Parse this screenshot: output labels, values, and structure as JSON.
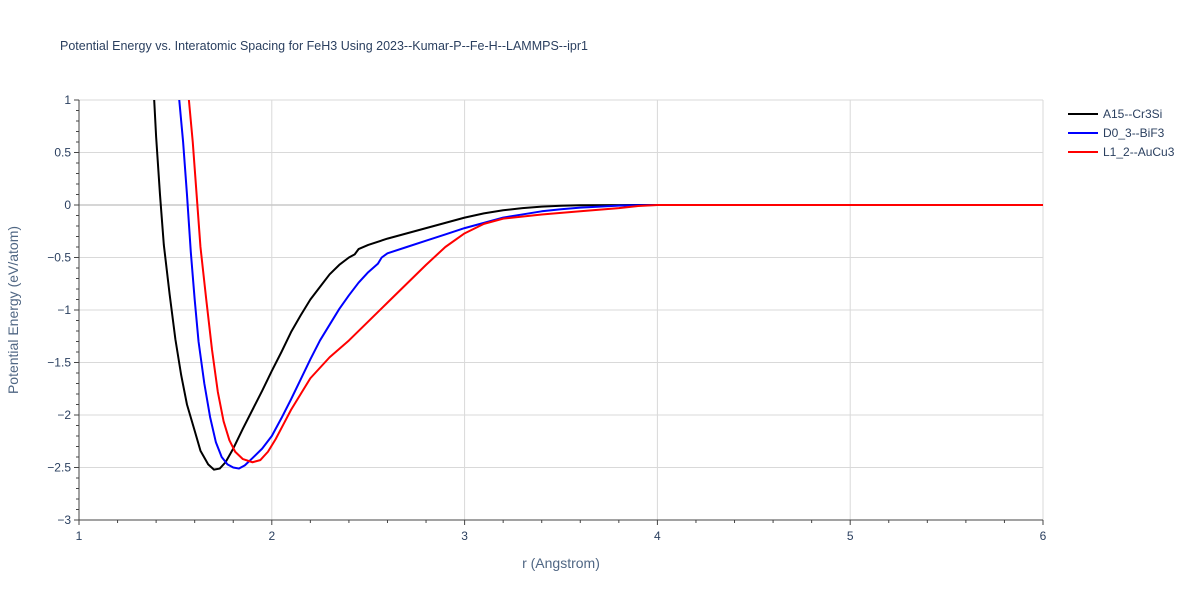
{
  "chart_data": {
    "type": "line",
    "title": "Potential Energy vs. Interatomic Spacing for FeH3 Using 2023--Kumar-P--Fe-H--LAMMPS--ipr1",
    "xlabel": "r (Angstrom)",
    "ylabel": "Potential Energy (eV/atom)",
    "xlim": [
      1,
      6
    ],
    "ylim": [
      -3,
      1
    ],
    "x_ticks": [
      1,
      2,
      3,
      4,
      5,
      6
    ],
    "x_tick_labels": [
      "1",
      "2",
      "3",
      "4",
      "5",
      "6"
    ],
    "y_ticks": [
      1,
      0.5,
      0,
      -0.5,
      -1,
      -1.5,
      -2,
      -2.5,
      -3
    ],
    "y_tick_labels": [
      "1",
      "0.5",
      "0",
      "−0.5",
      "−1",
      "−1.5",
      "−2",
      "−2.5",
      "−3"
    ],
    "grid": true,
    "legend_position": "top-right",
    "series": [
      {
        "name": "A15--Cr3Si",
        "color": "#000000",
        "points": [
          [
            1.39,
            1.0
          ],
          [
            1.4,
            0.65
          ],
          [
            1.42,
            0.1
          ],
          [
            1.44,
            -0.38
          ],
          [
            1.47,
            -0.85
          ],
          [
            1.5,
            -1.28
          ],
          [
            1.53,
            -1.62
          ],
          [
            1.56,
            -1.9
          ],
          [
            1.6,
            -2.15
          ],
          [
            1.63,
            -2.34
          ],
          [
            1.67,
            -2.47
          ],
          [
            1.7,
            -2.52
          ],
          [
            1.73,
            -2.51
          ],
          [
            1.76,
            -2.45
          ],
          [
            1.8,
            -2.32
          ],
          [
            1.85,
            -2.13
          ],
          [
            1.9,
            -1.95
          ],
          [
            1.95,
            -1.77
          ],
          [
            2.0,
            -1.58
          ],
          [
            2.05,
            -1.4
          ],
          [
            2.1,
            -1.21
          ],
          [
            2.15,
            -1.05
          ],
          [
            2.2,
            -0.9
          ],
          [
            2.25,
            -0.78
          ],
          [
            2.3,
            -0.66
          ],
          [
            2.35,
            -0.57
          ],
          [
            2.4,
            -0.5
          ],
          [
            2.43,
            -0.47
          ],
          [
            2.45,
            -0.42
          ],
          [
            2.5,
            -0.38
          ],
          [
            2.6,
            -0.32
          ],
          [
            2.7,
            -0.27
          ],
          [
            2.8,
            -0.22
          ],
          [
            2.9,
            -0.17
          ],
          [
            3.0,
            -0.12
          ],
          [
            3.1,
            -0.08
          ],
          [
            3.2,
            -0.05
          ],
          [
            3.3,
            -0.03
          ],
          [
            3.4,
            -0.015
          ],
          [
            3.5,
            -0.007
          ],
          [
            3.6,
            -0.003
          ],
          [
            3.8,
            -0.001
          ],
          [
            4.0,
            0.0
          ],
          [
            5.0,
            0.0
          ],
          [
            6.0,
            0.0
          ]
        ]
      },
      {
        "name": "D0_3--BiF3",
        "color": "#0000ff",
        "points": [
          [
            1.52,
            1.0
          ],
          [
            1.54,
            0.6
          ],
          [
            1.56,
            0.1
          ],
          [
            1.58,
            -0.45
          ],
          [
            1.6,
            -0.9
          ],
          [
            1.62,
            -1.3
          ],
          [
            1.65,
            -1.7
          ],
          [
            1.68,
            -2.02
          ],
          [
            1.71,
            -2.26
          ],
          [
            1.74,
            -2.4
          ],
          [
            1.77,
            -2.47
          ],
          [
            1.8,
            -2.5
          ],
          [
            1.83,
            -2.51
          ],
          [
            1.86,
            -2.48
          ],
          [
            1.9,
            -2.41
          ],
          [
            1.95,
            -2.32
          ],
          [
            2.0,
            -2.2
          ],
          [
            2.05,
            -2.03
          ],
          [
            2.1,
            -1.85
          ],
          [
            2.15,
            -1.66
          ],
          [
            2.2,
            -1.47
          ],
          [
            2.25,
            -1.29
          ],
          [
            2.3,
            -1.14
          ],
          [
            2.35,
            -0.99
          ],
          [
            2.4,
            -0.86
          ],
          [
            2.45,
            -0.74
          ],
          [
            2.5,
            -0.64
          ],
          [
            2.55,
            -0.56
          ],
          [
            2.57,
            -0.5
          ],
          [
            2.6,
            -0.46
          ],
          [
            2.7,
            -0.4
          ],
          [
            2.8,
            -0.34
          ],
          [
            2.9,
            -0.28
          ],
          [
            3.0,
            -0.22
          ],
          [
            3.1,
            -0.17
          ],
          [
            3.2,
            -0.12
          ],
          [
            3.3,
            -0.09
          ],
          [
            3.4,
            -0.06
          ],
          [
            3.5,
            -0.04
          ],
          [
            3.6,
            -0.025
          ],
          [
            3.7,
            -0.015
          ],
          [
            3.8,
            -0.006
          ],
          [
            3.9,
            -0.002
          ],
          [
            4.0,
            0.0
          ],
          [
            5.0,
            0.0
          ],
          [
            6.0,
            0.0
          ]
        ]
      },
      {
        "name": "L1_2--AuCu3",
        "color": "#ff0000",
        "points": [
          [
            1.57,
            1.0
          ],
          [
            1.59,
            0.6
          ],
          [
            1.61,
            0.1
          ],
          [
            1.63,
            -0.4
          ],
          [
            1.66,
            -0.9
          ],
          [
            1.69,
            -1.38
          ],
          [
            1.72,
            -1.78
          ],
          [
            1.75,
            -2.06
          ],
          [
            1.78,
            -2.24
          ],
          [
            1.81,
            -2.35
          ],
          [
            1.85,
            -2.42
          ],
          [
            1.9,
            -2.45
          ],
          [
            1.94,
            -2.43
          ],
          [
            1.98,
            -2.35
          ],
          [
            2.02,
            -2.23
          ],
          [
            2.06,
            -2.09
          ],
          [
            2.1,
            -1.95
          ],
          [
            2.15,
            -1.8
          ],
          [
            2.2,
            -1.65
          ],
          [
            2.25,
            -1.55
          ],
          [
            2.3,
            -1.45
          ],
          [
            2.4,
            -1.29
          ],
          [
            2.5,
            -1.11
          ],
          [
            2.6,
            -0.93
          ],
          [
            2.7,
            -0.75
          ],
          [
            2.8,
            -0.57
          ],
          [
            2.9,
            -0.4
          ],
          [
            3.0,
            -0.27
          ],
          [
            3.1,
            -0.18
          ],
          [
            3.2,
            -0.13
          ],
          [
            3.4,
            -0.09
          ],
          [
            3.6,
            -0.06
          ],
          [
            3.8,
            -0.03
          ],
          [
            3.9,
            -0.01
          ],
          [
            4.0,
            0.0
          ],
          [
            5.0,
            0.0
          ],
          [
            6.0,
            0.0
          ]
        ]
      }
    ]
  }
}
